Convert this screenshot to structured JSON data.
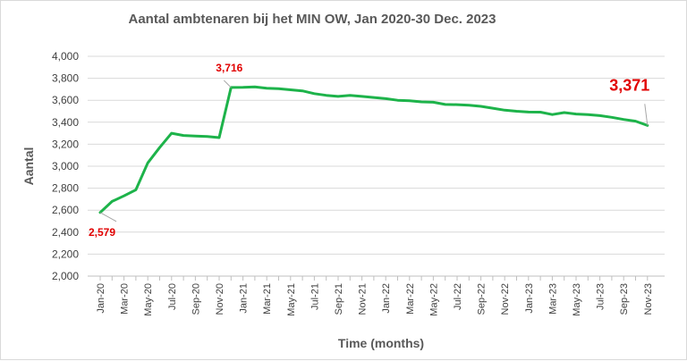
{
  "chart_data": {
    "type": "line",
    "title": "Aantal ambtenaren bij het MIN OW, Jan 2020-30 Dec. 2023",
    "xlabel": "Time (months)",
    "ylabel": "Aantal",
    "ylim": [
      2000,
      4000
    ],
    "yticks": [
      "2,000",
      "2,200",
      "2,400",
      "2,600",
      "2,800",
      "3,000",
      "3,200",
      "3,400",
      "3,600",
      "3,800",
      "4,000"
    ],
    "grid": true,
    "legend": "none",
    "line_color": "#1db34a",
    "label_color": "#e10000",
    "x_tick_labels": [
      "Jan-20",
      "Mar-20",
      "May-20",
      "Jul-20",
      "Sep-20",
      "Nov-20",
      "Jan-21",
      "Mar-21",
      "May-21",
      "Jul-21",
      "Sep-21",
      "Nov-21",
      "Jan-22",
      "Mar-22",
      "May-22",
      "Jul-22",
      "Sep-22",
      "Nov-22",
      "Jan-23",
      "Mar-23",
      "May-23",
      "Jul-23",
      "Sep-23",
      "Nov-23"
    ],
    "x": [
      "2020-01",
      "2020-02",
      "2020-03",
      "2020-04",
      "2020-05",
      "2020-06",
      "2020-07",
      "2020-08",
      "2020-09",
      "2020-10",
      "2020-11",
      "2020-12",
      "2021-01",
      "2021-02",
      "2021-03",
      "2021-04",
      "2021-05",
      "2021-06",
      "2021-07",
      "2021-08",
      "2021-09",
      "2021-10",
      "2021-11",
      "2021-12",
      "2022-01",
      "2022-02",
      "2022-03",
      "2022-04",
      "2022-05",
      "2022-06",
      "2022-07",
      "2022-08",
      "2022-09",
      "2022-10",
      "2022-11",
      "2022-12",
      "2023-01",
      "2023-02",
      "2023-03",
      "2023-04",
      "2023-05",
      "2023-06",
      "2023-07",
      "2023-08",
      "2023-09",
      "2023-10",
      "2023-11"
    ],
    "values": [
      2579,
      2680,
      2730,
      2785,
      3030,
      3170,
      3300,
      3280,
      3275,
      3270,
      3260,
      3716,
      3718,
      3722,
      3710,
      3705,
      3695,
      3685,
      3660,
      3645,
      3635,
      3645,
      3635,
      3625,
      3615,
      3600,
      3595,
      3585,
      3582,
      3562,
      3560,
      3555,
      3545,
      3528,
      3510,
      3500,
      3493,
      3492,
      3470,
      3488,
      3475,
      3470,
      3460,
      3445,
      3425,
      3410,
      3371
    ],
    "annotations": [
      {
        "text": "2,579",
        "index": 0,
        "size": "small"
      },
      {
        "text": "3,716",
        "index": 11,
        "size": "small"
      },
      {
        "text": "3,371",
        "index": 46,
        "size": "large"
      }
    ]
  }
}
